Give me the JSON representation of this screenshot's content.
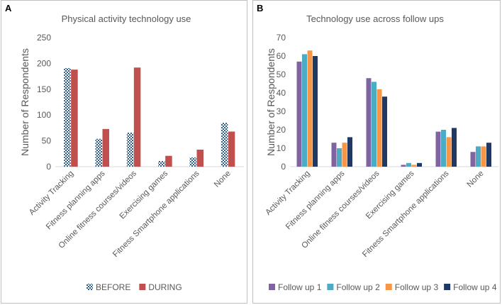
{
  "chart_data": [
    {
      "panel": "A",
      "type": "bar",
      "title": "Physical activity technology use",
      "xlabel": "",
      "ylabel": "Number of Respondents",
      "ylim": [
        0,
        250
      ],
      "yticks": [
        0,
        50,
        100,
        150,
        200,
        250
      ],
      "grid": false,
      "legend_position": "bottom",
      "categories": [
        "Activity Tracking",
        "Fitness planning apps",
        "Online fitness courses/videos",
        "Exercising games",
        "Fitness Smartphone applications",
        "None"
      ],
      "series": [
        {
          "name": "BEFORE",
          "color": "#2e5e8c",
          "pattern": "checker",
          "values": [
            191,
            54,
            66,
            11,
            18,
            85
          ]
        },
        {
          "name": "DURING",
          "color": "#c0504d",
          "values": [
            188,
            73,
            192,
            21,
            33,
            68
          ]
        }
      ]
    },
    {
      "panel": "B",
      "type": "bar",
      "title": "Technology use across follow ups",
      "xlabel": "",
      "ylabel": "Number of Respondents",
      "ylim": [
        0,
        70
      ],
      "yticks": [
        0,
        10,
        20,
        30,
        40,
        50,
        60,
        70
      ],
      "grid": false,
      "legend_position": "bottom",
      "categories": [
        "Activity Tracking",
        "Fitness planning apps",
        "Online fitness courses/videos",
        "Exercising games",
        "Fitness Smartphone applications",
        "None"
      ],
      "series": [
        {
          "name": "Follow up 1",
          "color": "#8064a2",
          "values": [
            57,
            13,
            48,
            1,
            19,
            8
          ]
        },
        {
          "name": "Follow up 2",
          "color": "#4bacc6",
          "values": [
            61,
            10,
            46,
            2,
            20,
            11
          ]
        },
        {
          "name": "Follow up 3",
          "color": "#f79646",
          "values": [
            63,
            13,
            42,
            1,
            16,
            11
          ]
        },
        {
          "name": "Follow up 4",
          "color": "#1f3864",
          "values": [
            60,
            16,
            38,
            2,
            21,
            13
          ]
        }
      ]
    }
  ]
}
